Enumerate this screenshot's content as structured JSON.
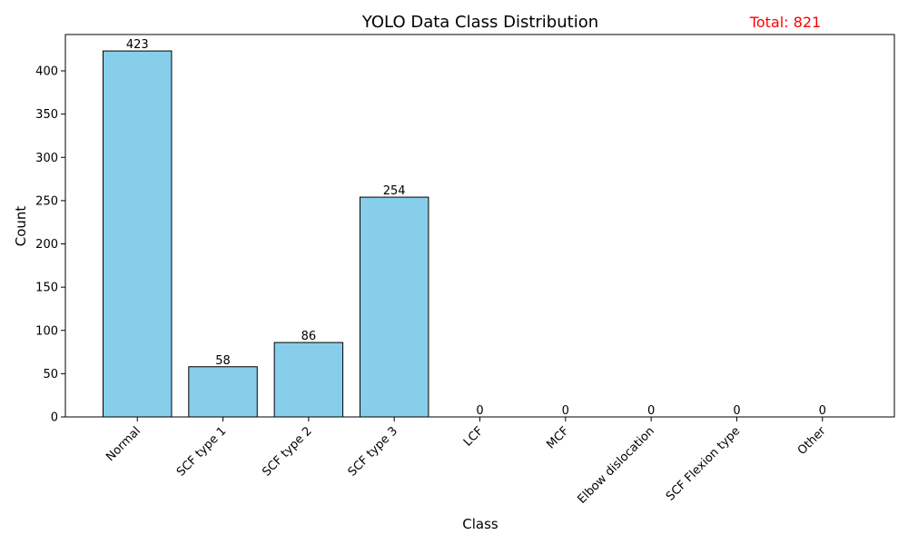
{
  "chart_data": {
    "type": "bar",
    "title": "YOLO Data Class Distribution",
    "annotation": "Total: 821",
    "xlabel": "Class",
    "ylabel": "Count",
    "categories": [
      "Normal",
      "SCF type 1",
      "SCF type 2",
      "SCF type 3",
      "LCF",
      "MCF",
      "Elbow dislocation",
      "SCF Flexion type",
      "Other"
    ],
    "values": [
      423,
      58,
      86,
      254,
      0,
      0,
      0,
      0,
      0
    ],
    "ylim": [
      0,
      442
    ],
    "yticks": [
      0,
      50,
      100,
      150,
      200,
      250,
      300,
      350,
      400
    ],
    "grid": false,
    "bar_color": "#87CEEB",
    "bar_edge_color": "#000000",
    "annotation_color": "#FF0000"
  }
}
